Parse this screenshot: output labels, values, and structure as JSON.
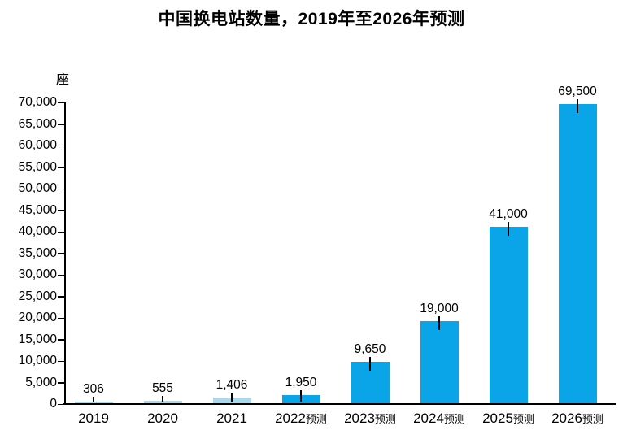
{
  "chart_data": {
    "type": "bar",
    "title": "中国换电站数量，2019年至2026年预测",
    "unit_label": "座",
    "xlabel": "",
    "ylabel": "座",
    "ylim": [
      0,
      70000
    ],
    "ytick_step": 5000,
    "ytick_labels": [
      "0",
      "5,000",
      "10,000",
      "15,000",
      "20,000",
      "25,000",
      "30,000",
      "35,000",
      "40,000",
      "45,000",
      "50,000",
      "55,000",
      "60,000",
      "65,000",
      "70,000"
    ],
    "categories": [
      "2019",
      "2020",
      "2021",
      "2022预测",
      "2023预测",
      "2024预测",
      "2025预测",
      "2026预测"
    ],
    "values": [
      306,
      555,
      1406,
      1950,
      9650,
      19000,
      41000,
      69500
    ],
    "bars": [
      {
        "year": "2019",
        "suffix": "",
        "value": 306,
        "label": "306",
        "series": "actual"
      },
      {
        "year": "2020",
        "suffix": "",
        "value": 555,
        "label": "555",
        "series": "actual"
      },
      {
        "year": "2021",
        "suffix": "",
        "value": 1406,
        "label": "1,406",
        "series": "actual"
      },
      {
        "year": "2022",
        "suffix": "预测",
        "value": 1950,
        "label": "1,950",
        "series": "forecast"
      },
      {
        "year": "2023",
        "suffix": "预测",
        "value": 9650,
        "label": "9,650",
        "series": "forecast"
      },
      {
        "year": "2024",
        "suffix": "预测",
        "value": 19000,
        "label": "19,000",
        "series": "forecast"
      },
      {
        "year": "2025",
        "suffix": "预测",
        "value": 41000,
        "label": "41,000",
        "series": "forecast"
      },
      {
        "year": "2026",
        "suffix": "预测",
        "value": 69500,
        "label": "69,500",
        "series": "forecast"
      }
    ],
    "colors": {
      "actual_bar": "#A9D9EE",
      "forecast_bar": "#0AA5E8",
      "axis": "#000000",
      "text": "#000000"
    },
    "legend": "none",
    "grid": "off"
  }
}
